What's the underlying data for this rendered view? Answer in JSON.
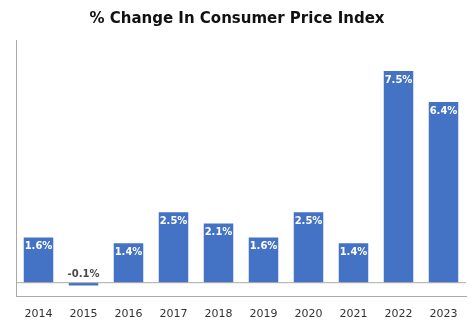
{
  "chart_data": {
    "type": "bar",
    "title": "% Change In Consumer Price Index",
    "categories": [
      "2014",
      "2015",
      "2016",
      "2017",
      "2018",
      "2019",
      "2020",
      "2021",
      "2022",
      "2023"
    ],
    "values": [
      1.6,
      -0.1,
      1.4,
      2.5,
      2.1,
      1.6,
      2.5,
      1.4,
      7.5,
      6.4
    ],
    "value_labels": [
      "1.6%",
      "-0.1%",
      "1.4%",
      "2.5%",
      "2.1%",
      "1.6%",
      "2.5%",
      "1.4%",
      "7.5%",
      "6.4%"
    ],
    "color": "#4472C4",
    "ylim": [
      -0.5,
      8.6
    ],
    "grid": false,
    "data_labels": true,
    "tick_labels": "x"
  }
}
